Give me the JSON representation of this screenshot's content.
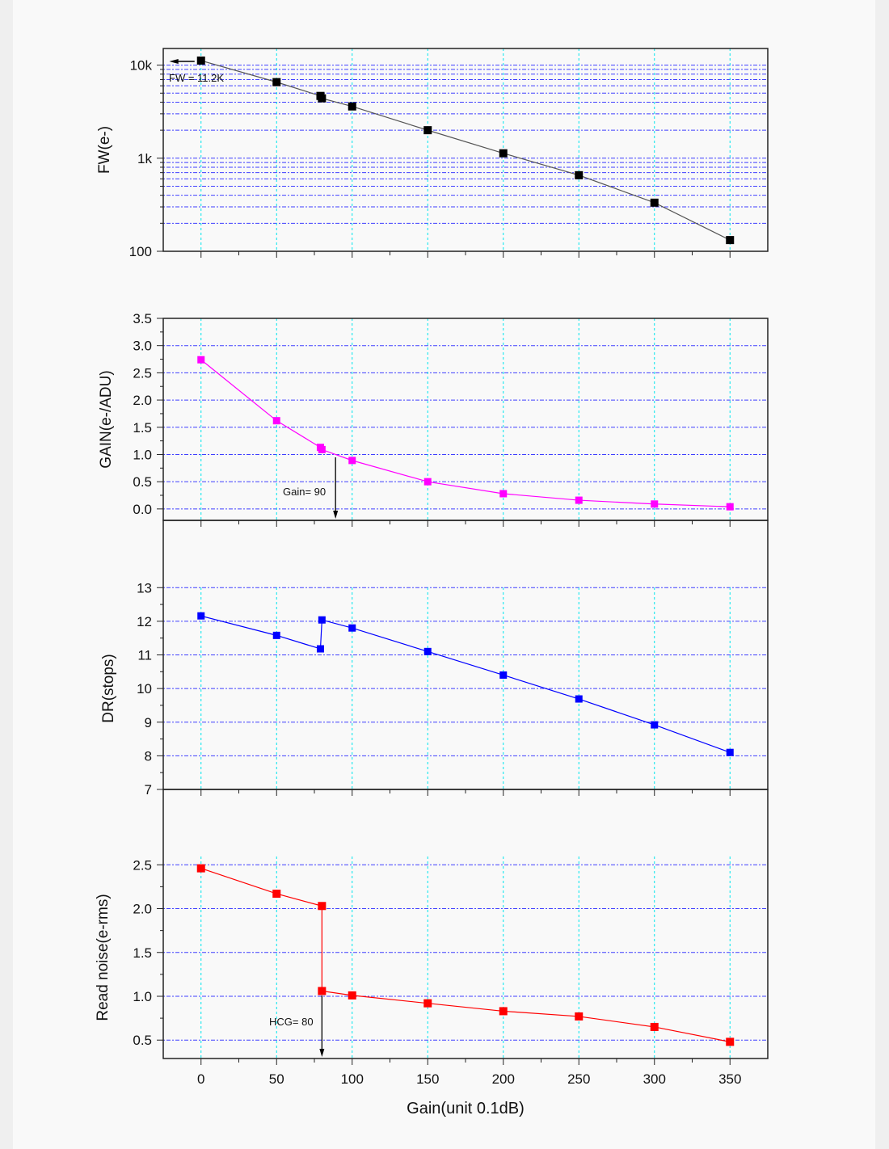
{
  "chart_data": {
    "type": "line",
    "xlabel": "Gain(unit 0.1dB)",
    "xlim": [
      -25,
      375
    ],
    "x_ticks": [
      "0",
      "50",
      "100",
      "150",
      "200",
      "250",
      "300",
      "350"
    ],
    "panels": [
      {
        "id": "fw",
        "ylabel": "FW(e-)",
        "scale": "log",
        "ylim": [
          100,
          15100
        ],
        "color": "#000000",
        "y_ticks": [
          {
            "v": 100,
            "label": "100"
          },
          {
            "v": 1000,
            "label": "1k"
          },
          {
            "v": 10000,
            "label": "10k"
          }
        ],
        "x": [
          0,
          50,
          79,
          80,
          100,
          150,
          200,
          250,
          300,
          350
        ],
        "y": [
          11200,
          6570,
          4670,
          4400,
          3600,
          2000,
          1130,
          657,
          333,
          132
        ],
        "annotation": {
          "text": "FW = 11.2K",
          "arrow": "left"
        }
      },
      {
        "id": "gain",
        "ylabel": "GAIN(e-/ADU)",
        "scale": "linear",
        "ylim": [
          -0.21,
          3.5
        ],
        "color": "#ff00ff",
        "y_ticks": [
          {
            "v": 0,
            "label": "0.0"
          },
          {
            "v": 0.5,
            "label": "0.5"
          },
          {
            "v": 1,
            "label": "1.0"
          },
          {
            "v": 1.5,
            "label": "1.5"
          },
          {
            "v": 2,
            "label": "2.0"
          },
          {
            "v": 2.5,
            "label": "2.5"
          },
          {
            "v": 3,
            "label": "3.0"
          },
          {
            "v": 3.5,
            "label": "3.5"
          }
        ],
        "x": [
          0,
          50,
          79,
          80,
          100,
          150,
          200,
          250,
          300,
          350
        ],
        "y": [
          2.74,
          1.62,
          1.13,
          1.09,
          0.89,
          0.5,
          0.28,
          0.16,
          0.09,
          0.04
        ],
        "annotation": {
          "text": "Gain= 90",
          "arrow": "down",
          "x": 89
        }
      },
      {
        "id": "dr",
        "ylabel": "DR(stops)",
        "scale": "linear",
        "ylim": [
          7,
          15
        ],
        "color": "#0000ff",
        "y_ticks": [
          {
            "v": 7,
            "label": "7"
          },
          {
            "v": 8,
            "label": "8"
          },
          {
            "v": 9,
            "label": "9"
          },
          {
            "v": 10,
            "label": "10"
          },
          {
            "v": 11,
            "label": "11"
          },
          {
            "v": 12,
            "label": "12"
          },
          {
            "v": 13,
            "label": "13"
          }
        ],
        "x": [
          0,
          50,
          79,
          80,
          100,
          150,
          200,
          250,
          300,
          350
        ],
        "y": [
          12.16,
          11.58,
          11.18,
          12.04,
          11.8,
          11.1,
          10.4,
          9.69,
          8.92,
          8.1
        ]
      },
      {
        "id": "rn",
        "ylabel": "Read noise(e-rms)",
        "scale": "linear",
        "ylim": [
          0.29,
          3.36
        ],
        "color": "#ff0000",
        "y_ticks": [
          {
            "v": 0.5,
            "label": "0.5"
          },
          {
            "v": 1,
            "label": "1.0"
          },
          {
            "v": 1.5,
            "label": "1.5"
          },
          {
            "v": 2,
            "label": "2.0"
          },
          {
            "v": 2.5,
            "label": "2.5"
          }
        ],
        "x": [
          0,
          50,
          80,
          80,
          100,
          150,
          200,
          250,
          300,
          350
        ],
        "y": [
          2.46,
          2.17,
          2.03,
          1.06,
          1.01,
          0.92,
          0.83,
          0.77,
          0.65,
          0.48
        ],
        "annotation": {
          "text": "HCG= 80",
          "arrow": "down",
          "x": 80
        }
      }
    ]
  }
}
